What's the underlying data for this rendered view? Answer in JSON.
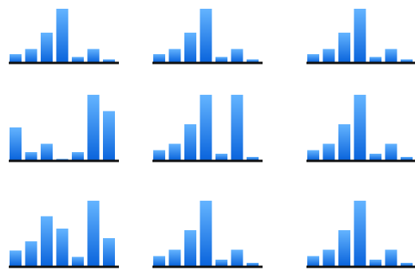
{
  "colors": {
    "bar_top": "#64B4FF",
    "bar_bottom": "#0A64DC",
    "baseline": "#111111",
    "background": "#ffffff"
  },
  "chart_data": [
    {
      "type": "bar",
      "values": [
        3,
        5,
        11,
        20,
        2,
        5,
        1
      ]
    },
    {
      "type": "bar",
      "values": [
        3,
        5,
        11,
        20,
        2,
        5,
        1
      ]
    },
    {
      "type": "bar",
      "values": [
        3,
        5,
        11,
        20,
        2,
        5,
        1
      ]
    },
    {
      "type": "bar",
      "values": [
        12,
        3,
        6,
        0.5,
        3,
        24,
        18
      ]
    },
    {
      "type": "bar",
      "values": [
        3,
        5,
        11,
        20,
        2,
        20,
        1
      ]
    },
    {
      "type": "bar",
      "values": [
        3,
        5,
        11,
        20,
        2,
        5,
        1
      ]
    },
    {
      "type": "bar",
      "values": [
        5,
        8,
        16,
        12,
        3,
        21,
        9
      ]
    },
    {
      "type": "bar",
      "values": [
        3,
        5,
        11,
        20,
        2,
        5,
        1
      ]
    },
    {
      "type": "bar",
      "values": [
        3,
        5,
        11,
        20,
        2,
        5,
        1
      ]
    }
  ]
}
